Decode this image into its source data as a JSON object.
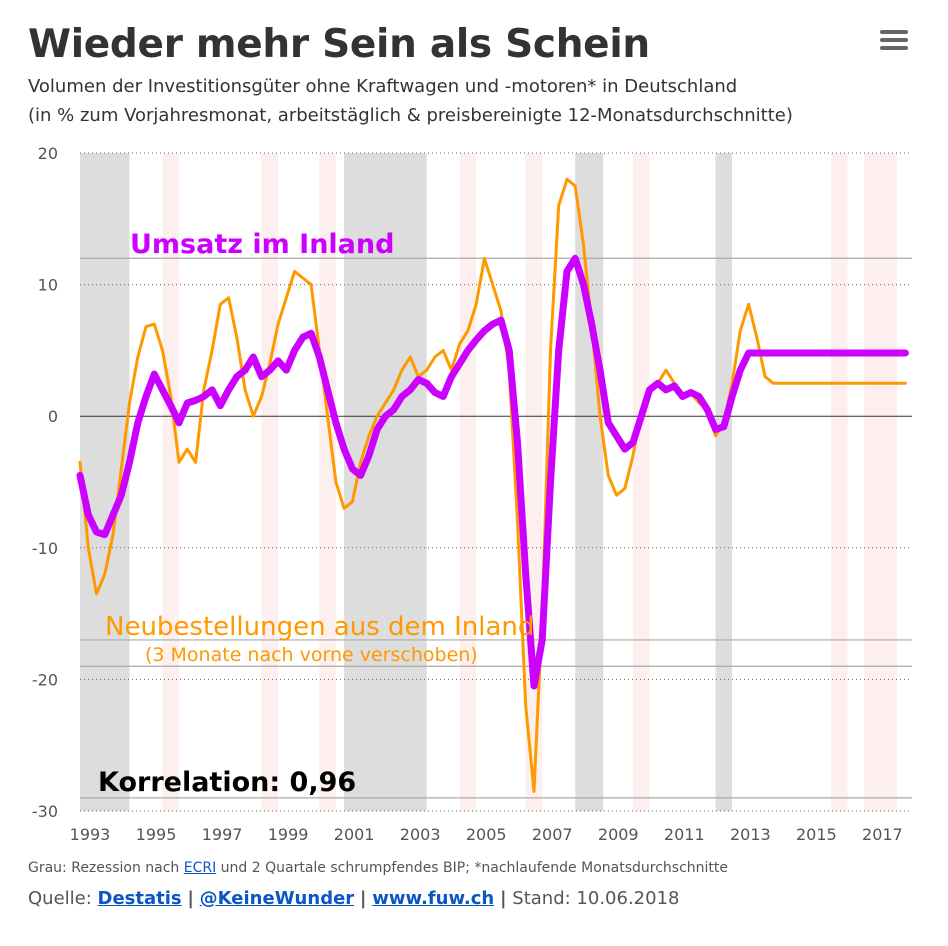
{
  "title": "Wieder mehr Sein als Schein",
  "subtitle_line1": "Volumen der Investitionsgüter ohne Kraftwagen und -motoren* in Deutschland",
  "subtitle_line2": "(in % zum Vorjahresmonat, arbeitstäglich & preisbereinigte 12-Monatsdurchschnitte)",
  "footnote": {
    "prefix": "Grau: Rezession nach ",
    "link": "ECRI",
    "suffix": " und 2 Quartale schrumpfendes BIP; *nachlaufende Monatsdurchschnitte"
  },
  "source": {
    "label": "Quelle: ",
    "links": [
      "Destatis",
      "@KeineWunder",
      "www.fuw.ch"
    ],
    "separator": "|",
    "stand": "Stand: 10.06.2018"
  },
  "chart_data": {
    "type": "line",
    "ylim": [
      -30,
      20
    ],
    "xlim": [
      1993,
      2018.2
    ],
    "yticks": [
      20,
      10,
      0,
      -10,
      -20,
      -30
    ],
    "ytick_labels": [
      "20",
      "10",
      "0",
      "-10",
      "-20",
      "-30"
    ],
    "xticks": [
      1993,
      1995,
      1997,
      1999,
      2001,
      2003,
      2005,
      2007,
      2009,
      2011,
      2013,
      2015,
      2017
    ],
    "xtick_labels": [
      "1993",
      "1995",
      "1997",
      "1999",
      "2001",
      "2003",
      "2005",
      "2007",
      "2009",
      "2011",
      "2013",
      "2015",
      "2017"
    ],
    "annotations": {
      "umsatz": "Umsatz im Inland",
      "bestellungen": "Neubestellungen aus dem Inland",
      "bestellungen_sub": "(3 Monate nach vorne verschoben)",
      "korrelation": "Korrelation: 0,96"
    },
    "recessions": [
      [
        1993.0,
        1994.5
      ],
      [
        2001.0,
        2003.5
      ],
      [
        2008.0,
        2008.85
      ],
      [
        2012.25,
        2012.75
      ]
    ],
    "light_bands": [
      [
        1995.5,
        1996.0
      ],
      [
        1998.5,
        1999.0
      ],
      [
        2000.25,
        2000.75
      ],
      [
        2004.5,
        2005.0
      ],
      [
        2006.5,
        2007.0
      ],
      [
        2009.75,
        2010.25
      ],
      [
        2015.75,
        2016.25
      ],
      [
        2016.75,
        2017.75
      ]
    ],
    "series": [
      {
        "name": "Umsatz im Inland",
        "color": "#cc00ff",
        "x": [
          1993.0,
          1993.25,
          1993.5,
          1993.75,
          1994.0,
          1994.25,
          1994.5,
          1994.75,
          1995.0,
          1995.25,
          1995.5,
          1995.75,
          1996.0,
          1996.25,
          1996.5,
          1996.75,
          1997.0,
          1997.25,
          1997.5,
          1997.75,
          1998.0,
          1998.25,
          1998.5,
          1998.75,
          1999.0,
          1999.25,
          1999.5,
          1999.75,
          2000.0,
          2000.25,
          2000.5,
          2000.75,
          2001.0,
          2001.25,
          2001.5,
          2001.75,
          2002.0,
          2002.25,
          2002.5,
          2002.75,
          2003.0,
          2003.25,
          2003.5,
          2003.75,
          2004.0,
          2004.25,
          2004.5,
          2004.75,
          2005.0,
          2005.25,
          2005.5,
          2005.75,
          2006.0,
          2006.25,
          2006.5,
          2006.75,
          2007.0,
          2007.25,
          2007.5,
          2007.75,
          2008.0,
          2008.25,
          2008.5,
          2008.75,
          2009.0,
          2009.25,
          2009.5,
          2009.75,
          2010.0,
          2010.25,
          2010.5,
          2010.75,
          2011.0,
          2011.25,
          2011.5,
          2011.75,
          2012.0,
          2012.25,
          2012.5,
          2012.75,
          2013.0,
          2013.25,
          2013.5,
          2013.75,
          2014.0,
          2014.25,
          2014.5,
          2014.75,
          2015.0,
          2015.25,
          2015.5,
          2015.75,
          2016.0,
          2016.25,
          2016.5,
          2016.75,
          2017.0,
          2017.25,
          2017.5,
          2017.75,
          2018.0
        ],
        "values": [
          -4.5,
          -7.5,
          -8.8,
          -9.0,
          -7.5,
          -6.0,
          -3.5,
          -0.5,
          1.5,
          3.2,
          2.0,
          0.8,
          -0.5,
          1.0,
          1.2,
          1.5,
          2.0,
          0.8,
          2.0,
          3.0,
          3.5,
          4.5,
          3.0,
          3.5,
          4.2,
          3.5,
          5.0,
          6.0,
          6.3,
          4.5,
          2.0,
          -0.5,
          -2.5,
          -4.0,
          -4.5,
          -3.0,
          -1.0,
          0.0,
          0.5,
          1.5,
          2.0,
          2.8,
          2.5,
          1.8,
          1.5,
          3.0,
          4.0,
          5.0,
          5.8,
          6.5,
          7.0,
          7.3,
          5.0,
          -2.0,
          -12.0,
          -20.5,
          -17.0,
          -5.0,
          5.0,
          11.0,
          12.0,
          10.0,
          7.0,
          3.5,
          -0.5,
          -1.5,
          -2.5,
          -2.0,
          0.0,
          2.0,
          2.5,
          2.0,
          2.3,
          1.5,
          1.8,
          1.5,
          0.5,
          -1.0,
          -0.8,
          1.5,
          3.5,
          4.8,
          4.8,
          4.8,
          4.8,
          4.8,
          4.8,
          4.8,
          4.8,
          4.8,
          4.8,
          4.8,
          4.8,
          4.8,
          4.8,
          4.8,
          4.8,
          4.8,
          4.8,
          4.8,
          4.8
        ]
      },
      {
        "name": "Neubestellungen aus dem Inland",
        "color": "#ff9900",
        "x": [
          1993.0,
          1993.25,
          1993.5,
          1993.75,
          1994.0,
          1994.25,
          1994.5,
          1994.75,
          1995.0,
          1995.25,
          1995.5,
          1995.75,
          1996.0,
          1996.25,
          1996.5,
          1996.75,
          1997.0,
          1997.25,
          1997.5,
          1997.75,
          1998.0,
          1998.25,
          1998.5,
          1998.75,
          1999.0,
          1999.25,
          1999.5,
          1999.75,
          2000.0,
          2000.25,
          2000.5,
          2000.75,
          2001.0,
          2001.25,
          2001.5,
          2001.75,
          2002.0,
          2002.25,
          2002.5,
          2002.75,
          2003.0,
          2003.25,
          2003.5,
          2003.75,
          2004.0,
          2004.25,
          2004.5,
          2004.75,
          2005.0,
          2005.25,
          2005.5,
          2005.75,
          2006.0,
          2006.25,
          2006.5,
          2006.75,
          2007.0,
          2007.25,
          2007.5,
          2007.75,
          2008.0,
          2008.25,
          2008.5,
          2008.75,
          2009.0,
          2009.25,
          2009.5,
          2009.75,
          2010.0,
          2010.25,
          2010.5,
          2010.75,
          2011.0,
          2011.25,
          2011.5,
          2011.75,
          2012.0,
          2012.25,
          2012.5,
          2012.75,
          2013.0,
          2013.25,
          2013.5,
          2013.75,
          2014.0,
          2014.25,
          2014.5,
          2014.75,
          2015.0,
          2015.25,
          2015.5,
          2015.75,
          2016.0,
          2016.25,
          2016.5,
          2016.75,
          2017.0,
          2017.25,
          2017.5,
          2017.75,
          2018.0
        ],
        "values": [
          -3.5,
          -10.0,
          -13.5,
          -12.0,
          -9.0,
          -4.0,
          1.0,
          4.5,
          6.8,
          7.0,
          5.0,
          1.5,
          -3.5,
          -2.5,
          -3.5,
          2.0,
          5.0,
          8.5,
          9.0,
          6.0,
          2.0,
          0.0,
          1.5,
          4.0,
          7.0,
          9.0,
          11.0,
          10.5,
          10.0,
          5.0,
          0.0,
          -5.0,
          -7.0,
          -6.5,
          -3.5,
          -1.5,
          0.0,
          1.0,
          2.0,
          3.5,
          4.5,
          3.0,
          3.5,
          4.5,
          5.0,
          3.5,
          5.5,
          6.5,
          8.5,
          12.0,
          10.0,
          8.0,
          3.5,
          -8.0,
          -22.0,
          -28.5,
          -15.0,
          5.0,
          16.0,
          18.0,
          17.5,
          13.0,
          7.0,
          0.0,
          -4.5,
          -6.0,
          -5.5,
          -3.0,
          0.5,
          2.0,
          2.5,
          3.5,
          2.5,
          1.5,
          1.8,
          1.0,
          0.5,
          -1.5,
          -0.5,
          2.5,
          6.5,
          8.5,
          6.0,
          3.0,
          2.5,
          2.5,
          2.5,
          2.5,
          2.5,
          2.5,
          2.5,
          2.5,
          2.5,
          2.5,
          2.5,
          2.5,
          2.5,
          2.5,
          2.5,
          2.5,
          2.5
        ]
      }
    ]
  }
}
